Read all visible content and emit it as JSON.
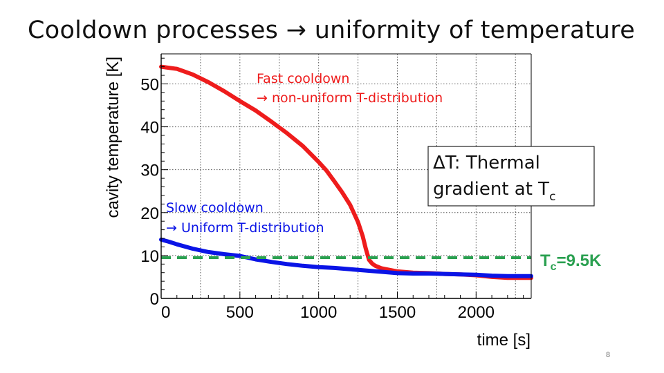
{
  "slide": {
    "title": "Cooldown processes → uniformity of temperature",
    "page_number": "8"
  },
  "chart_data": {
    "type": "line",
    "xlabel": "time [s]",
    "ylabel": "cavity temperature [K]",
    "xlim": [
      0,
      2350
    ],
    "ylim": [
      0,
      57
    ],
    "x_ticks": [
      0,
      500,
      1000,
      1500,
      2000
    ],
    "y_ticks": [
      0,
      10,
      20,
      30,
      40,
      50
    ],
    "grid": true,
    "series": [
      {
        "color": "#ee1c1c",
        "x": [
          0,
          100,
          200,
          300,
          400,
          500,
          600,
          700,
          800,
          900,
          1000,
          1050,
          1100,
          1150,
          1200,
          1250,
          1280,
          1300,
          1320,
          1340,
          1360,
          1400,
          1500,
          1600,
          1700,
          1800,
          1900,
          2000,
          2100,
          2200,
          2350
        ],
        "y": [
          54,
          53.5,
          52.2,
          50.4,
          48.3,
          46.0,
          43.8,
          41.2,
          38.5,
          35.5,
          31.8,
          29.8,
          27.3,
          24.7,
          21.8,
          17.8,
          14.5,
          11.5,
          9.0,
          8.1,
          7.6,
          7.0,
          6.3,
          6.0,
          5.9,
          5.7,
          5.6,
          5.4,
          5.0,
          4.8,
          4.8
        ]
      },
      {
        "color": "#0a14e6",
        "x": [
          0,
          50,
          100,
          200,
          300,
          400,
          500,
          600,
          700,
          800,
          900,
          1000,
          1100,
          1200,
          1300,
          1400,
          1500,
          1600,
          1700,
          1800,
          1900,
          2000,
          2100,
          2200,
          2350
        ],
        "y": [
          13.7,
          13.2,
          12.6,
          11.6,
          10.8,
          10.3,
          9.9,
          9.1,
          8.5,
          8.0,
          7.6,
          7.3,
          7.1,
          6.8,
          6.5,
          6.2,
          5.9,
          5.8,
          5.8,
          5.7,
          5.6,
          5.5,
          5.3,
          5.2,
          5.2
        ]
      },
      {
        "color": "#2aa050",
        "dashed": true,
        "x": [
          0,
          2350
        ],
        "y": [
          9.5,
          9.5
        ]
      }
    ],
    "annotations": {
      "fast_line1": "Fast cooldown",
      "fast_line2": "→ non-uniform T-distribution",
      "slow_line1": "Slow cooldown",
      "slow_line2": "→ Uniform T-distribution",
      "delta_line1": "ΔT: Thermal",
      "delta_line2": "gradient at T",
      "delta_subscript": "c",
      "tc_main": "T",
      "tc_subscript": "c",
      "tc_value": "=9.5K"
    },
    "colors": {
      "fast": "#ee1c1c",
      "slow": "#0a14e6",
      "tc": "#2aa050"
    }
  }
}
